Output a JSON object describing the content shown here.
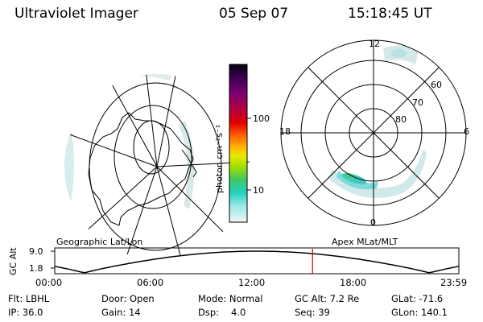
{
  "header": {
    "title": "Ultraviolet Imager",
    "date": "05 Sep 07",
    "time": "15:18:45 UT"
  },
  "left_panel": {
    "label": "Geographic Lat/Lon"
  },
  "right_panel": {
    "label": "Apex MLat/MLT",
    "mlt_labels": {
      "top": "12",
      "left": "18",
      "right": "6",
      "bottom": "0"
    },
    "mlat_labels": [
      "60",
      "70",
      "80"
    ]
  },
  "colorbar": {
    "unit": "photon cm⁻²s⁻¹",
    "ticks": [
      "100",
      "10"
    ],
    "colors": [
      "#000000",
      "#3a0050",
      "#7a0070",
      "#b00040",
      "#e00000",
      "#ff6000",
      "#ffb000",
      "#e8e800",
      "#a0e000",
      "#40c860",
      "#20d0c0",
      "#a0e8e8",
      "#e8f4f4"
    ]
  },
  "altitude_plot": {
    "ylabel": "GC Alt",
    "yticks": [
      "9.0",
      "1.8"
    ],
    "xticks": [
      "00:00",
      "06:00",
      "12:00",
      "18:00",
      "23:59"
    ],
    "current_time_hours": 15.31,
    "marker_color": "#cc0000"
  },
  "info": {
    "row1": {
      "flt": "Flt: LBHL",
      "door": "Door: Open",
      "mode": "Mode: Normal",
      "gcalt": "GC Alt: 7.2 Re",
      "glat": "GLat: -71.6"
    },
    "row2": {
      "ip": "IP: 36.0",
      "gain": "Gain: 14",
      "dsp_label": "Dsp:",
      "dsp_value": "4.0",
      "seq": "Seq: 39",
      "glon": "GLon: 140.1"
    }
  }
}
